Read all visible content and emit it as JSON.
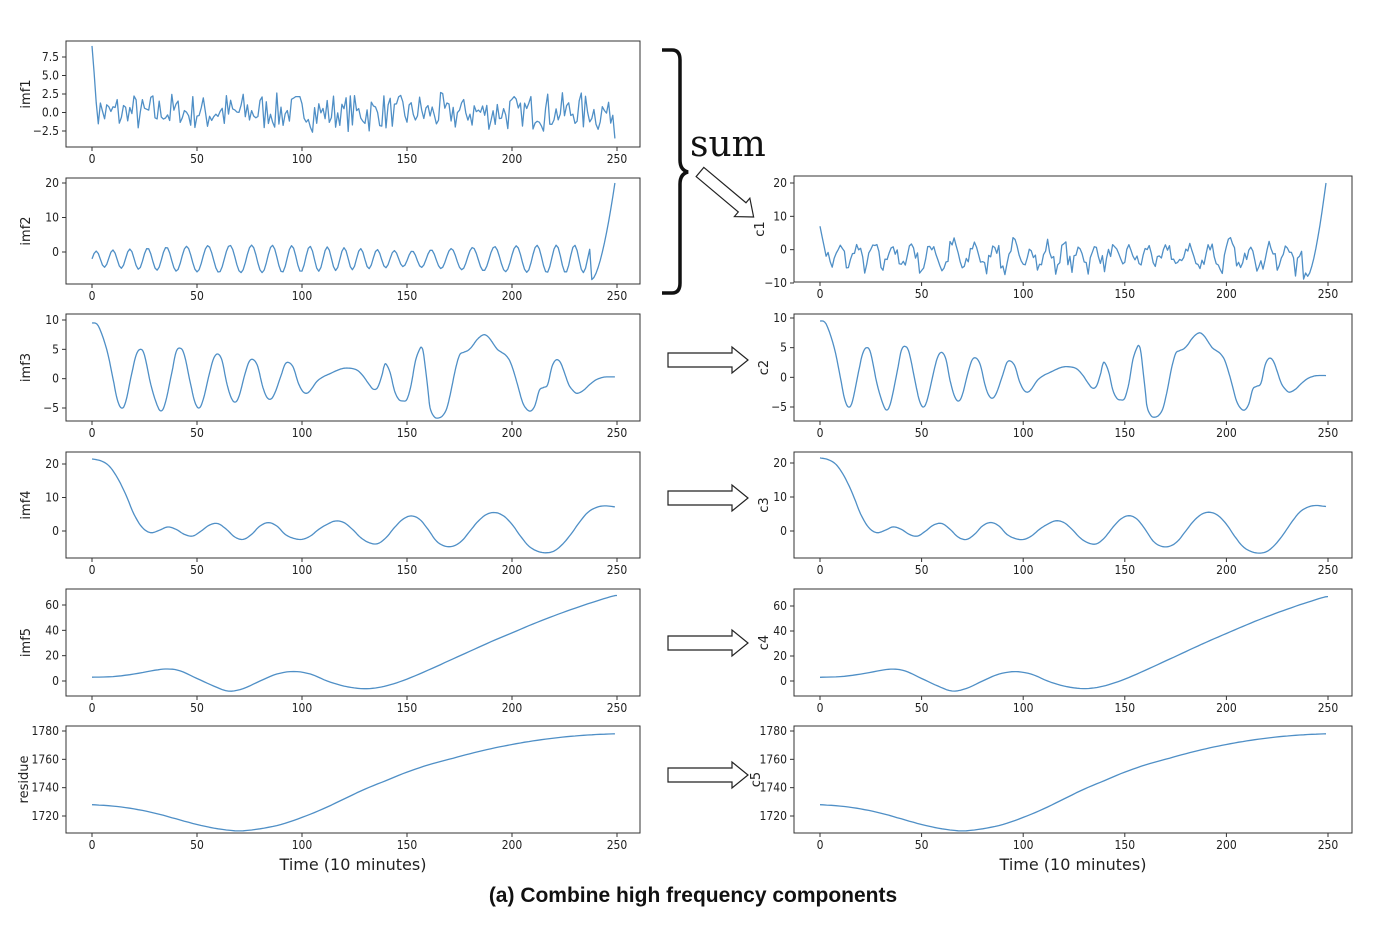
{
  "caption": "(a) Combine high frequency components",
  "sum_label": "sum",
  "line_color": "#4f8fc6",
  "chart_data": [
    {
      "id": "imf1",
      "type": "line",
      "ylabel": "imf1",
      "xticks": [
        0,
        50,
        100,
        150,
        200,
        250
      ],
      "yticks": [
        "7.5",
        "5.0",
        "2.5",
        "0.0",
        "−2.5"
      ],
      "ylim": [
        -4,
        9.5
      ],
      "x_range": [
        0,
        249
      ],
      "approx": "noisy high-frequency oscillation, starts at 9, amplitude about 3, ends at -3.5"
    },
    {
      "id": "imf2",
      "type": "line",
      "ylabel": "imf2",
      "xticks": [
        0,
        50,
        100,
        150,
        200,
        250
      ],
      "yticks": [
        "20",
        "10",
        "0"
      ],
      "ylim": [
        -8,
        21
      ],
      "x_range": [
        0,
        249
      ],
      "approx": "oscillation amplitude about 4, spikes to 20 at the end"
    },
    {
      "id": "imf3",
      "type": "line",
      "ylabel": "imf3",
      "xticks": [
        0,
        50,
        100,
        150,
        200,
        250
      ],
      "yticks": [
        "10",
        "5",
        "0",
        "−5"
      ],
      "ylim": [
        -7,
        10.5
      ],
      "points": [
        [
          0,
          9.5
        ],
        [
          3,
          9
        ],
        [
          7,
          5
        ],
        [
          10,
          0
        ],
        [
          12,
          -3.5
        ],
        [
          14,
          -5
        ],
        [
          16,
          -4
        ],
        [
          19,
          1
        ],
        [
          21,
          4
        ],
        [
          23,
          5
        ],
        [
          25,
          4
        ],
        [
          28,
          -1
        ],
        [
          31,
          -4.5
        ],
        [
          33,
          -5.5
        ],
        [
          35,
          -4
        ],
        [
          38,
          1
        ],
        [
          40,
          4.5
        ],
        [
          42,
          5.2
        ],
        [
          44,
          4
        ],
        [
          47,
          -1
        ],
        [
          49,
          -4
        ],
        [
          51,
          -5
        ],
        [
          53,
          -3.5
        ],
        [
          56,
          1
        ],
        [
          58,
          3.5
        ],
        [
          60,
          4.2
        ],
        [
          62,
          3
        ],
        [
          64,
          -0.5
        ],
        [
          66,
          -3
        ],
        [
          68,
          -4
        ],
        [
          70,
          -3
        ],
        [
          73,
          1
        ],
        [
          75,
          3
        ],
        [
          77,
          3.2
        ],
        [
          79,
          2
        ],
        [
          81,
          -1
        ],
        [
          83,
          -3
        ],
        [
          85,
          -3.5
        ],
        [
          87,
          -2.5
        ],
        [
          90,
          0.5
        ],
        [
          92,
          2.5
        ],
        [
          94,
          2.7
        ],
        [
          96,
          1.8
        ],
        [
          98,
          -0.5
        ],
        [
          100,
          -2
        ],
        [
          102,
          -2.5
        ],
        [
          104,
          -2
        ],
        [
          107,
          -0.5
        ],
        [
          110,
          0.3
        ],
        [
          113,
          0.8
        ],
        [
          116,
          1.3
        ],
        [
          119,
          1.7
        ],
        [
          122,
          1.8
        ],
        [
          126,
          1.5
        ],
        [
          129,
          0.5
        ],
        [
          132,
          -1
        ],
        [
          134,
          -1.8
        ],
        [
          136,
          -1.5
        ],
        [
          138,
          0.5
        ],
        [
          139,
          2
        ],
        [
          140,
          2.5
        ],
        [
          142,
          1
        ],
        [
          144,
          -2
        ],
        [
          146,
          -3.5
        ],
        [
          148,
          -3.8
        ],
        [
          150,
          -3.5
        ],
        [
          152,
          -1
        ],
        [
          154,
          3
        ],
        [
          156,
          5
        ],
        [
          157,
          5.3
        ],
        [
          158,
          4
        ],
        [
          160,
          -2
        ],
        [
          161,
          -5
        ],
        [
          163,
          -6.5
        ],
        [
          165,
          -6.7
        ],
        [
          167,
          -6.3
        ],
        [
          169,
          -5
        ],
        [
          171,
          -2
        ],
        [
          173,
          1.5
        ],
        [
          175,
          4
        ],
        [
          177,
          4.5
        ],
        [
          179,
          4.8
        ],
        [
          181,
          5.5
        ],
        [
          183,
          6.5
        ],
        [
          185,
          7.2
        ],
        [
          187,
          7.5
        ],
        [
          189,
          7
        ],
        [
          191,
          6
        ],
        [
          193,
          5
        ],
        [
          195,
          4.5
        ],
        [
          197,
          4
        ],
        [
          199,
          3
        ],
        [
          201,
          1
        ],
        [
          203,
          -1.5
        ],
        [
          205,
          -4
        ],
        [
          207,
          -5.2
        ],
        [
          209,
          -5.5
        ],
        [
          211,
          -4.5
        ],
        [
          213,
          -2
        ],
        [
          215,
          -1.5
        ],
        [
          217,
          -1
        ],
        [
          219,
          2
        ],
        [
          221,
          3.2
        ],
        [
          223,
          2.8
        ],
        [
          225,
          1
        ],
        [
          227,
          -1
        ],
        [
          229,
          -2
        ],
        [
          231,
          -2.5
        ],
        [
          234,
          -2
        ],
        [
          237,
          -1
        ],
        [
          240,
          -0.2
        ],
        [
          243,
          0.2
        ],
        [
          245,
          0.3
        ],
        [
          249,
          0.3
        ]
      ]
    },
    {
      "id": "imf4",
      "type": "line",
      "ylabel": "imf4",
      "xticks": [
        0,
        50,
        100,
        150,
        200,
        250
      ],
      "yticks": [
        "20",
        "10",
        "0"
      ],
      "ylim": [
        -7,
        22
      ],
      "points": [
        [
          0,
          21.5
        ],
        [
          4,
          21
        ],
        [
          8,
          19.5
        ],
        [
          12,
          16
        ],
        [
          16,
          11
        ],
        [
          20,
          5
        ],
        [
          24,
          1
        ],
        [
          28,
          -0.5
        ],
        [
          32,
          0.2
        ],
        [
          36,
          1.2
        ],
        [
          40,
          0.5
        ],
        [
          44,
          -1
        ],
        [
          48,
          -1.5
        ],
        [
          52,
          0
        ],
        [
          56,
          1.8
        ],
        [
          60,
          2.2
        ],
        [
          64,
          0.5
        ],
        [
          68,
          -1.8
        ],
        [
          72,
          -2.5
        ],
        [
          76,
          -1
        ],
        [
          80,
          1.5
        ],
        [
          84,
          2.5
        ],
        [
          88,
          1.5
        ],
        [
          92,
          -1
        ],
        [
          96,
          -2.2
        ],
        [
          100,
          -2.5
        ],
        [
          104,
          -1.5
        ],
        [
          108,
          0.5
        ],
        [
          112,
          2
        ],
        [
          116,
          3
        ],
        [
          120,
          2.5
        ],
        [
          124,
          0.5
        ],
        [
          128,
          -2
        ],
        [
          132,
          -3.5
        ],
        [
          136,
          -3.8
        ],
        [
          140,
          -2
        ],
        [
          144,
          1
        ],
        [
          148,
          3.5
        ],
        [
          152,
          4.5
        ],
        [
          156,
          3.5
        ],
        [
          160,
          0.5
        ],
        [
          164,
          -3
        ],
        [
          168,
          -4.5
        ],
        [
          172,
          -4.5
        ],
        [
          176,
          -3
        ],
        [
          180,
          0
        ],
        [
          184,
          3
        ],
        [
          188,
          5
        ],
        [
          192,
          5.5
        ],
        [
          196,
          4.5
        ],
        [
          200,
          2
        ],
        [
          204,
          -1.5
        ],
        [
          208,
          -4.5
        ],
        [
          212,
          -6
        ],
        [
          216,
          -6.5
        ],
        [
          220,
          -6
        ],
        [
          224,
          -4
        ],
        [
          228,
          -1
        ],
        [
          232,
          2.5
        ],
        [
          236,
          5.5
        ],
        [
          240,
          7
        ],
        [
          244,
          7.5
        ],
        [
          249,
          7.2
        ]
      ]
    },
    {
      "id": "imf5",
      "type": "line",
      "ylabel": "imf5",
      "xticks": [
        0,
        50,
        100,
        150,
        200,
        250
      ],
      "yticks": [
        "60",
        "40",
        "20",
        "0"
      ],
      "ylim": [
        -10,
        70
      ],
      "points": [
        [
          0,
          3
        ],
        [
          10,
          3.5
        ],
        [
          20,
          5.5
        ],
        [
          30,
          8.5
        ],
        [
          36,
          9.5
        ],
        [
          42,
          8
        ],
        [
          50,
          2
        ],
        [
          58,
          -4
        ],
        [
          65,
          -8
        ],
        [
          72,
          -6
        ],
        [
          80,
          0
        ],
        [
          88,
          5.5
        ],
        [
          96,
          7.5
        ],
        [
          104,
          5.5
        ],
        [
          112,
          0
        ],
        [
          120,
          -4
        ],
        [
          128,
          -6
        ],
        [
          135,
          -5.5
        ],
        [
          142,
          -3
        ],
        [
          150,
          1.5
        ],
        [
          160,
          8.5
        ],
        [
          170,
          16
        ],
        [
          180,
          23.5
        ],
        [
          190,
          31
        ],
        [
          200,
          38
        ],
        [
          210,
          45
        ],
        [
          220,
          51.5
        ],
        [
          230,
          57.5
        ],
        [
          240,
          63
        ],
        [
          248,
          67
        ],
        [
          250,
          67.5
        ]
      ]
    },
    {
      "id": "residue",
      "type": "line",
      "ylabel": "residue",
      "xticks": [
        0,
        50,
        100,
        150,
        200,
        250
      ],
      "yticks": [
        "1780",
        "1760",
        "1740",
        "1720"
      ],
      "ylim": [
        1706,
        1782
      ],
      "points": [
        [
          0,
          1728
        ],
        [
          10,
          1727
        ],
        [
          20,
          1725
        ],
        [
          30,
          1722
        ],
        [
          40,
          1718
        ],
        [
          50,
          1714
        ],
        [
          60,
          1711
        ],
        [
          70,
          1709.5
        ],
        [
          80,
          1711
        ],
        [
          90,
          1714
        ],
        [
          100,
          1719
        ],
        [
          110,
          1725
        ],
        [
          120,
          1732
        ],
        [
          130,
          1739
        ],
        [
          140,
          1745
        ],
        [
          150,
          1751
        ],
        [
          160,
          1756
        ],
        [
          170,
          1760
        ],
        [
          180,
          1764
        ],
        [
          190,
          1767.5
        ],
        [
          200,
          1770.5
        ],
        [
          210,
          1773
        ],
        [
          220,
          1775
        ],
        [
          230,
          1776.5
        ],
        [
          240,
          1777.5
        ],
        [
          249,
          1778
        ]
      ]
    },
    {
      "id": "c1",
      "type": "line",
      "ylabel": "c1",
      "xticks": [
        0,
        50,
        100,
        150,
        200,
        250
      ],
      "yticks": [
        "20",
        "10",
        "0",
        "−10"
      ],
      "ylim": [
        -11,
        22
      ],
      "x_range": [
        0,
        249
      ],
      "approx": "sum of imf1 and imf2, oscillation amplitude about 6, rises to 20 at the end"
    },
    {
      "id": "c2",
      "type": "line",
      "ylabel": "c2",
      "xticks": [
        0,
        50,
        100,
        150,
        200,
        250
      ],
      "yticks": [
        "10",
        "5",
        "0",
        "−5"
      ],
      "ylim": [
        -7,
        10.5
      ],
      "same_as": "imf3"
    },
    {
      "id": "c3",
      "type": "line",
      "ylabel": "c3",
      "xticks": [
        0,
        50,
        100,
        150,
        200,
        250
      ],
      "yticks": [
        "20",
        "10",
        "0"
      ],
      "ylim": [
        -7,
        22
      ],
      "same_as": "imf4"
    },
    {
      "id": "c4",
      "type": "line",
      "ylabel": "c4",
      "xticks": [
        0,
        50,
        100,
        150,
        200,
        250
      ],
      "yticks": [
        "60",
        "40",
        "20",
        "0"
      ],
      "ylim": [
        -10,
        70
      ],
      "same_as": "imf5"
    },
    {
      "id": "c5",
      "type": "line",
      "ylabel": "c5",
      "xticks": [
        0,
        50,
        100,
        150,
        200,
        250
      ],
      "yticks": [
        "1780",
        "1760",
        "1740",
        "1720"
      ],
      "ylim": [
        1706,
        1782
      ],
      "same_as": "residue"
    }
  ],
  "xlabel_left": "Time (10 minutes)",
  "xlabel_right": "Time (10 minutes)"
}
